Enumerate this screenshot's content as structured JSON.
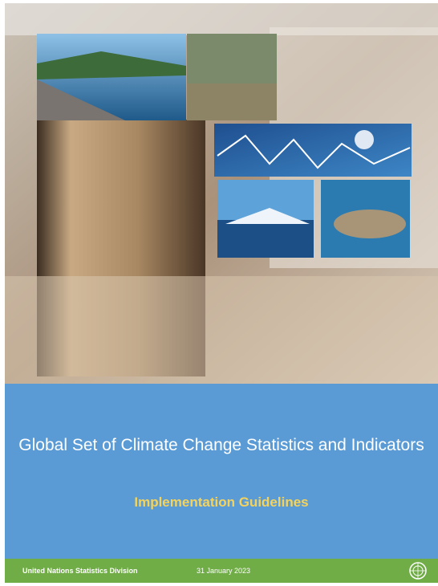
{
  "cover": {
    "title": "Global Set of Climate Change Statistics and Indicators",
    "subtitle": "Implementation Guidelines",
    "footer": {
      "organization": "United Nations Statistics Division",
      "date": "31 January 2023"
    }
  }
}
